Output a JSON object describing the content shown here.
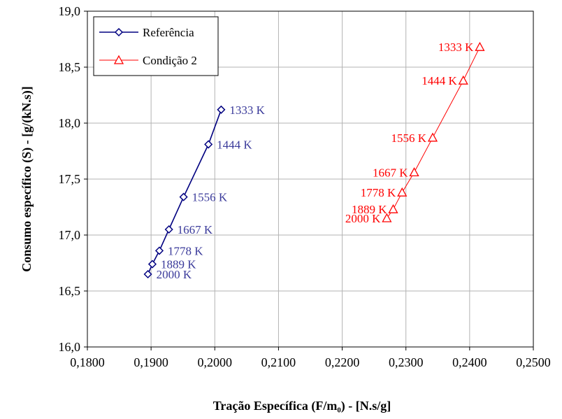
{
  "chart_data": {
    "type": "scatter",
    "xlabel": "Tração Específica (F/m₀) - [N.s/g]",
    "ylabel": "Consumo específico (S) - [g/(kN.s)]",
    "xlim": [
      0.18,
      0.25
    ],
    "ylim": [
      16.0,
      19.0
    ],
    "x_ticks": [
      0.18,
      0.19,
      0.2,
      0.21,
      0.22,
      0.23,
      0.24,
      0.25
    ],
    "y_ticks": [
      16.0,
      16.5,
      17.0,
      17.5,
      18.0,
      18.5,
      19.0
    ],
    "x_tick_labels": [
      "0,1800",
      "0,1900",
      "0,2000",
      "0,2100",
      "0,2200",
      "0,2300",
      "0,2400",
      "0,2500"
    ],
    "y_tick_labels": [
      "16,0",
      "16,5",
      "17,0",
      "17,5",
      "18,0",
      "18,5",
      "19,0"
    ],
    "grid": true,
    "legend_position": "top-left",
    "series": [
      {
        "name": "Referência",
        "color": "#000080",
        "label_color": "#3a3a9a",
        "marker": "diamond",
        "x": [
          0.201,
          0.199,
          0.1951,
          0.1928,
          0.1913,
          0.1902,
          0.1895
        ],
        "y": [
          18.12,
          17.81,
          17.34,
          17.05,
          16.86,
          16.74,
          16.65
        ],
        "point_labels": [
          "1333 K",
          "1444 K",
          "1556 K",
          "1667 K",
          "1778 K",
          "1889 K",
          "2000 K"
        ]
      },
      {
        "name": "Condição 2",
        "color": "#ff0000",
        "label_color": "#ff0000",
        "marker": "triangle",
        "x": [
          0.2416,
          0.239,
          0.2342,
          0.2313,
          0.2294,
          0.228,
          0.227
        ],
        "y": [
          18.68,
          18.38,
          17.87,
          17.56,
          17.38,
          17.23,
          17.15
        ],
        "point_labels": [
          "1333 K",
          "1444 K",
          "1556 K",
          "1667 K",
          "1778 K",
          "1889 K",
          "2000 K"
        ]
      }
    ]
  }
}
